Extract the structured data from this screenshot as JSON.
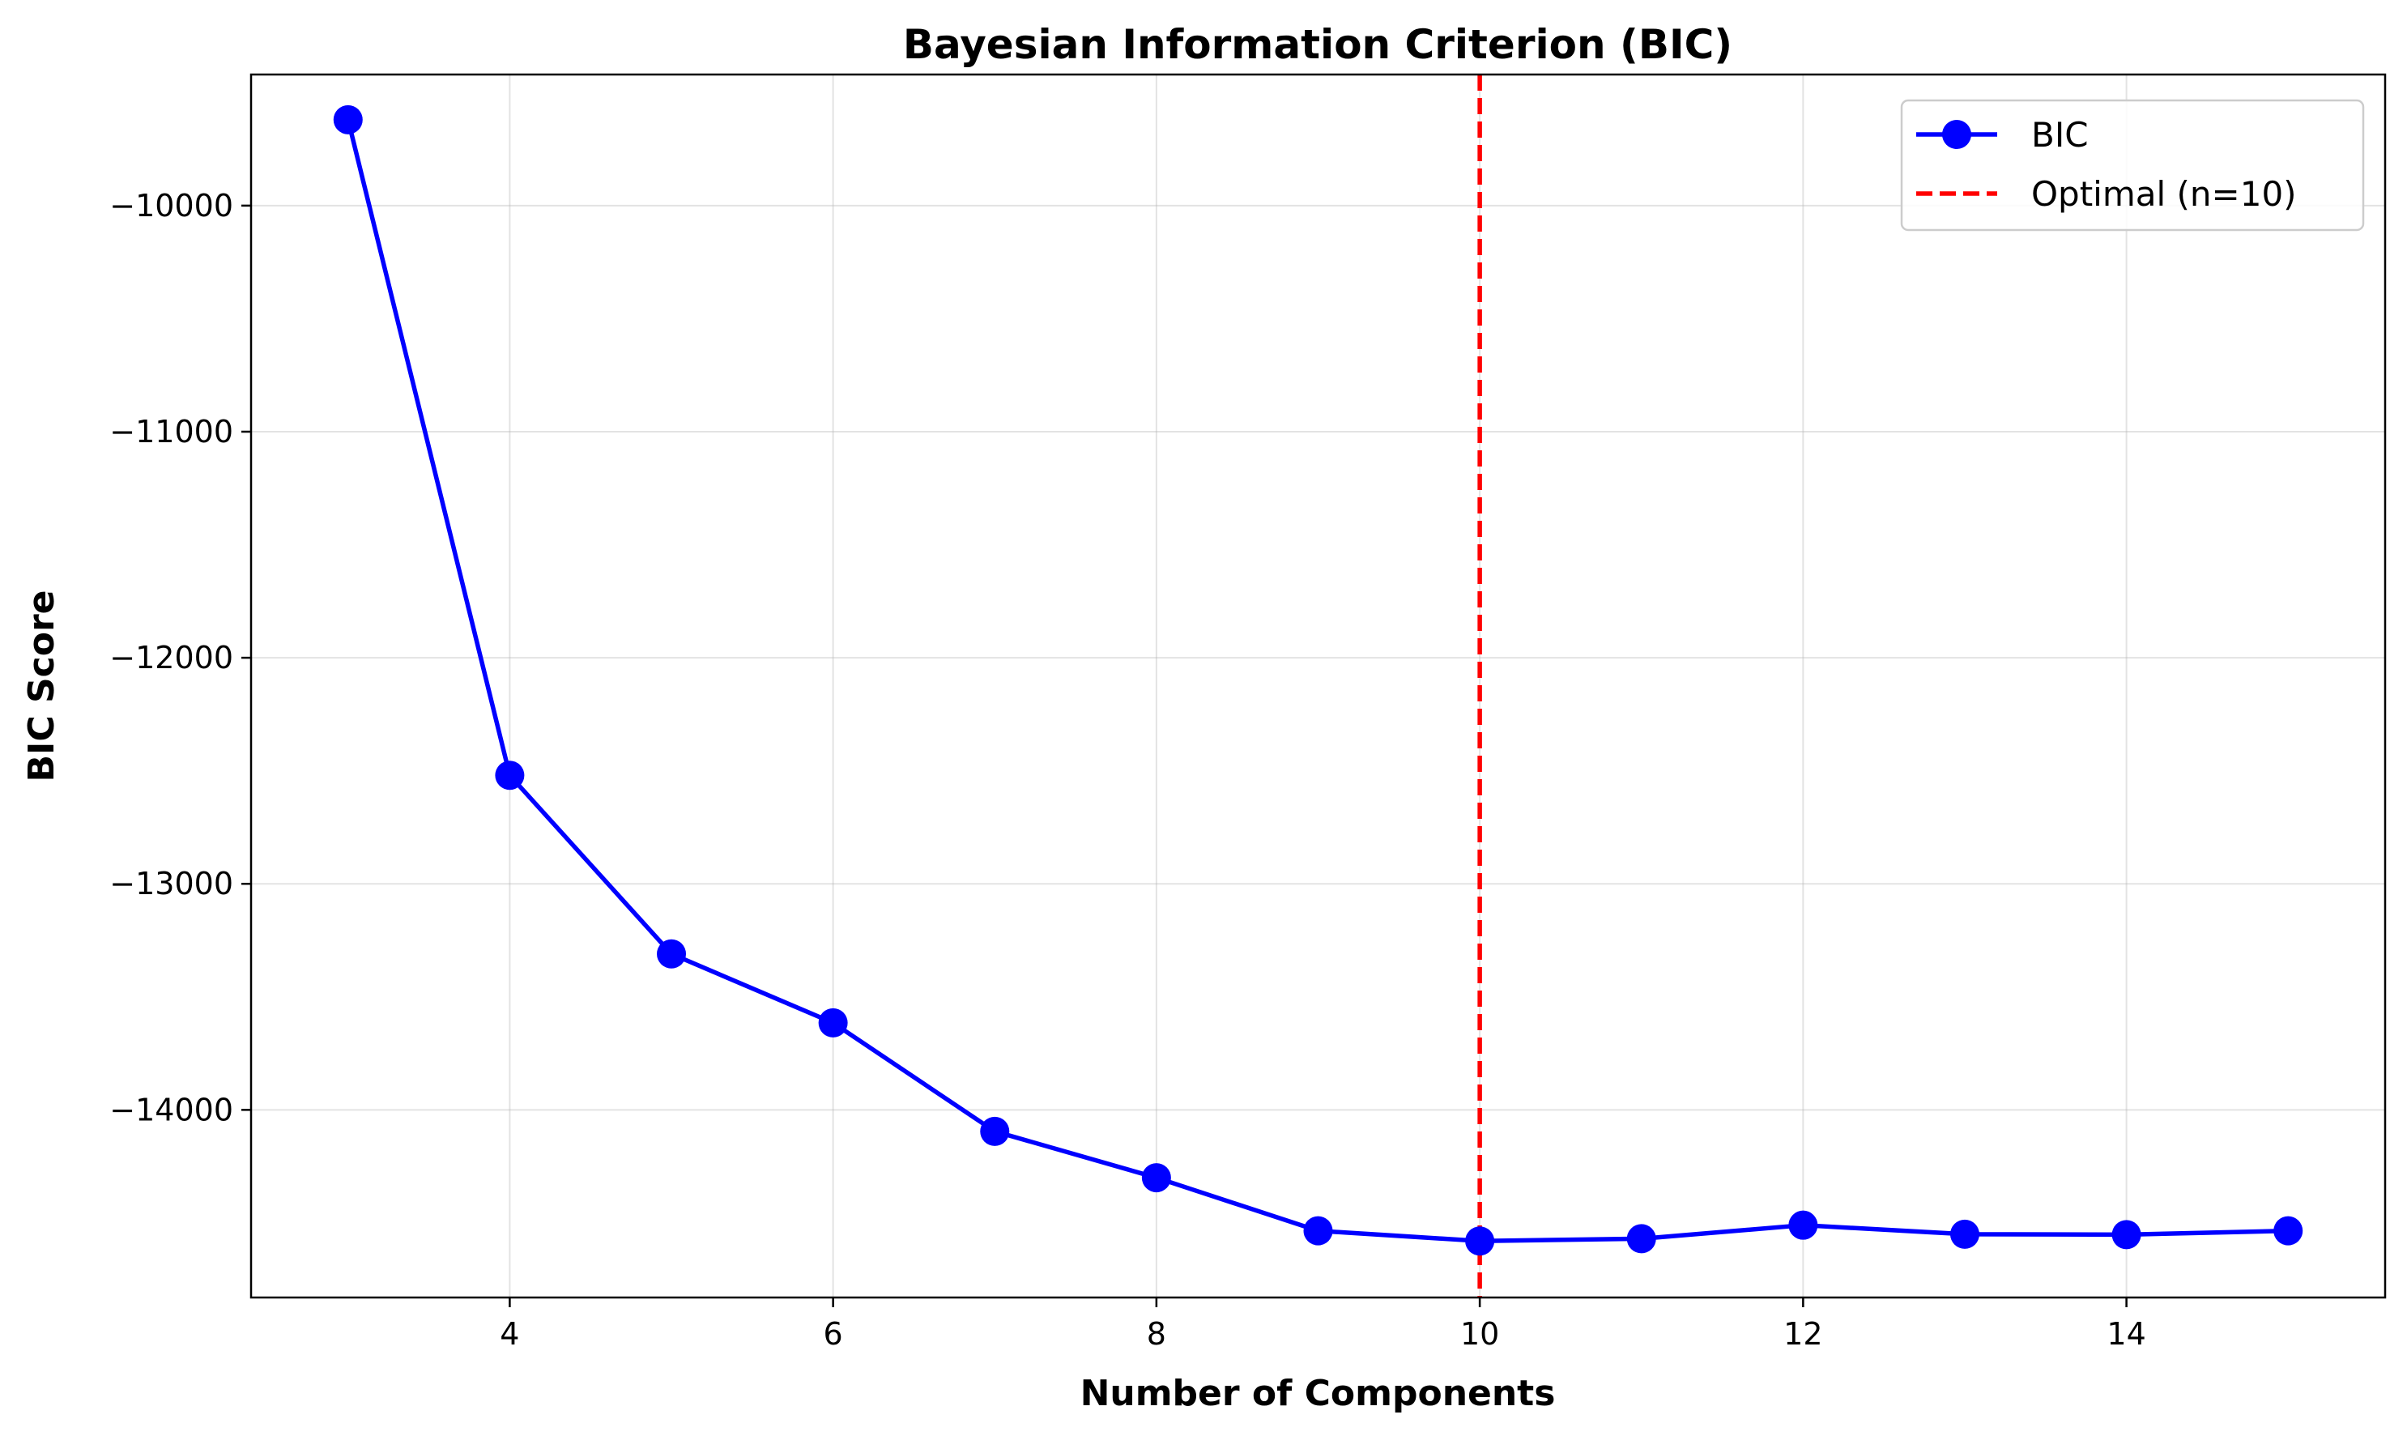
{
  "chart_data": {
    "type": "line",
    "title": "Bayesian Information Criterion (BIC)",
    "xlabel": "Number of Components",
    "ylabel": "BIC Score",
    "xlim": [
      2.4,
      15.6
    ],
    "ylim": [
      -14830,
      -9420
    ],
    "xticks": [
      4,
      6,
      8,
      10,
      12,
      14
    ],
    "xtick_labels": [
      "4",
      "6",
      "8",
      "10",
      "12",
      "14"
    ],
    "yticks": [
      -10000,
      -11000,
      -12000,
      -13000,
      -14000
    ],
    "ytick_labels": [
      "−10000",
      "−11000",
      "−12000",
      "−13000",
      "−14000"
    ],
    "grid": true,
    "legend_position": "top-right",
    "series": [
      {
        "name": "BIC",
        "color": "#0000ff",
        "marker": "circle",
        "x": [
          3,
          4,
          5,
          6,
          7,
          8,
          9,
          10,
          11,
          12,
          13,
          14,
          15
        ],
        "y": [
          -9620,
          -12520,
          -13310,
          -13615,
          -14095,
          -14300,
          -14535,
          -14580,
          -14570,
          -14510,
          -14550,
          -14552,
          -14535
        ]
      }
    ],
    "reference_line": {
      "name": "Optimal (n=10)",
      "orientation": "vertical",
      "x": 10,
      "color": "#ff0000",
      "style": "dashed"
    }
  }
}
